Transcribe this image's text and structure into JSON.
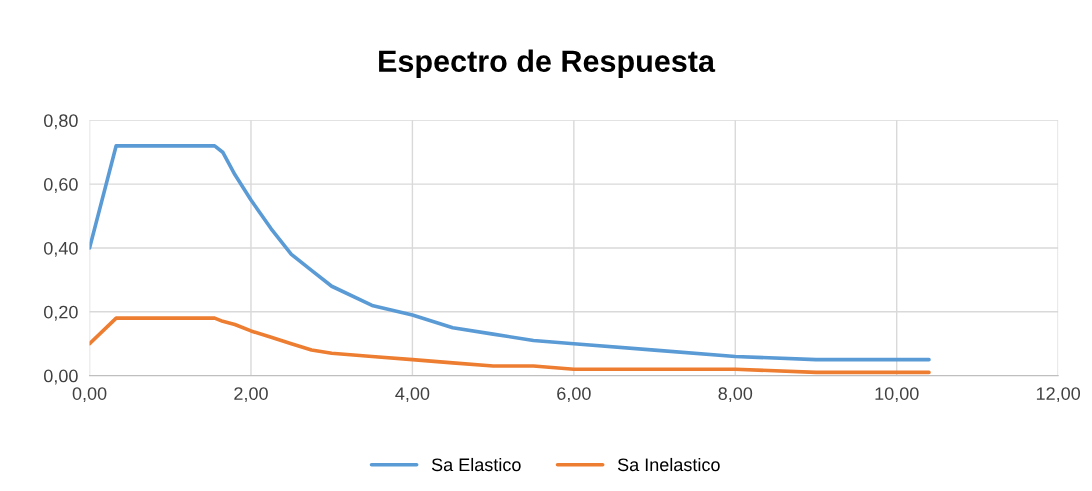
{
  "chart_data": {
    "type": "line",
    "title": "Espectro de Respuesta",
    "x": [
      0,
      0.33,
      0.4,
      1.0,
      1.55,
      1.65,
      1.8,
      2.0,
      2.25,
      2.5,
      2.75,
      3.0,
      3.5,
      4.0,
      4.5,
      5.0,
      5.5,
      6.0,
      7.0,
      8.0,
      9.0,
      10.0,
      10.4
    ],
    "series": [
      {
        "name": "Sa Elastico",
        "color": "#5b9bd5",
        "values": [
          0.4,
          0.72,
          0.72,
          0.72,
          0.72,
          0.7,
          0.63,
          0.55,
          0.46,
          0.38,
          0.33,
          0.28,
          0.22,
          0.19,
          0.15,
          0.13,
          0.11,
          0.1,
          0.08,
          0.06,
          0.05,
          0.05,
          0.05
        ]
      },
      {
        "name": "Sa Inelastico",
        "color": "#ed7d31",
        "values": [
          0.1,
          0.18,
          0.18,
          0.18,
          0.18,
          0.17,
          0.16,
          0.14,
          0.12,
          0.1,
          0.08,
          0.07,
          0.06,
          0.05,
          0.04,
          0.03,
          0.03,
          0.02,
          0.02,
          0.02,
          0.01,
          0.01,
          0.01
        ]
      }
    ],
    "xlim": [
      0,
      12
    ],
    "ylim": [
      0,
      0.8
    ],
    "xticks": [
      {
        "value": 0,
        "label": "0,00"
      },
      {
        "value": 2,
        "label": "2,00"
      },
      {
        "value": 4,
        "label": "4,00"
      },
      {
        "value": 6,
        "label": "6,00"
      },
      {
        "value": 8,
        "label": "8,00"
      },
      {
        "value": 10,
        "label": "10,00"
      },
      {
        "value": 12,
        "label": "12,00"
      }
    ],
    "yticks": [
      {
        "value": 0,
        "label": "0,00"
      },
      {
        "value": 0.2,
        "label": "0,20"
      },
      {
        "value": 0.4,
        "label": "0,40"
      },
      {
        "value": 0.6,
        "label": "0,60"
      },
      {
        "value": 0.8,
        "label": "0,80"
      }
    ],
    "grid": true,
    "legend": "bottom",
    "marker": "none",
    "line_style": "solid"
  }
}
